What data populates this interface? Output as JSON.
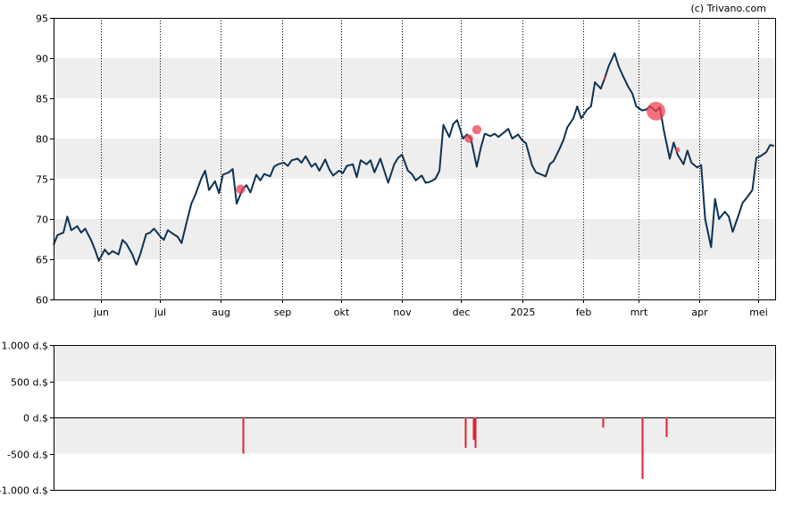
{
  "credit": "(c) Trivano.com",
  "colors": {
    "price_line": "#0d3354",
    "band": "#eeeeee",
    "marker": "#f04050",
    "bar": "#dd2233",
    "axis": "#000000"
  },
  "chart_data": [
    {
      "type": "line",
      "grid": "dotted vertical lines at month boundaries; alternating grey horizontal bands",
      "ylim": [
        60,
        95
      ],
      "y_ticks": [
        "60",
        "65",
        "70",
        "75",
        "80",
        "85",
        "90",
        "95"
      ],
      "y_tick_values": [
        60,
        65,
        70,
        75,
        80,
        85,
        90,
        95
      ],
      "bands": [
        [
          65,
          70
        ],
        [
          75,
          80
        ],
        [
          85,
          90
        ]
      ],
      "x_ticks": [
        {
          "label": "jun",
          "date": "2024-06-01"
        },
        {
          "label": "jul",
          "date": "2024-07-01"
        },
        {
          "label": "aug",
          "date": "2024-08-01"
        },
        {
          "label": "sep",
          "date": "2024-09-01"
        },
        {
          "label": "okt",
          "date": "2024-10-01"
        },
        {
          "label": "nov",
          "date": "2024-11-01"
        },
        {
          "label": "dec",
          "date": "2024-12-01"
        },
        {
          "label": "2025",
          "date": "2025-01-01"
        },
        {
          "label": "feb",
          "date": "2025-02-01"
        },
        {
          "label": "mrt",
          "date": "2025-03-01"
        },
        {
          "label": "apr",
          "date": "2025-04-01"
        },
        {
          "label": "mei",
          "date": "2025-05-01"
        }
      ],
      "xlim": [
        "2024-05-08",
        "2025-05-10"
      ],
      "series": [
        {
          "points": [
            [
              "2024-05-08",
              66.8
            ],
            [
              "2024-05-10",
              68.0
            ],
            [
              "2024-05-13",
              68.3
            ],
            [
              "2024-05-15",
              70.3
            ],
            [
              "2024-05-17",
              68.6
            ],
            [
              "2024-05-20",
              69.1
            ],
            [
              "2024-05-22",
              68.3
            ],
            [
              "2024-05-24",
              68.8
            ],
            [
              "2024-05-27",
              67.4
            ],
            [
              "2024-05-29",
              66.2
            ],
            [
              "2024-05-31",
              64.8
            ],
            [
              "2024-06-03",
              66.2
            ],
            [
              "2024-06-05",
              65.6
            ],
            [
              "2024-06-07",
              66.0
            ],
            [
              "2024-06-10",
              65.6
            ],
            [
              "2024-06-12",
              67.4
            ],
            [
              "2024-06-14",
              66.9
            ],
            [
              "2024-06-17",
              65.6
            ],
            [
              "2024-06-19",
              64.3
            ],
            [
              "2024-06-21",
              65.6
            ],
            [
              "2024-06-24",
              68.1
            ],
            [
              "2024-06-26",
              68.3
            ],
            [
              "2024-06-28",
              68.8
            ],
            [
              "2024-07-01",
              67.9
            ],
            [
              "2024-07-03",
              67.4
            ],
            [
              "2024-07-05",
              68.6
            ],
            [
              "2024-07-08",
              68.1
            ],
            [
              "2024-07-10",
              67.8
            ],
            [
              "2024-07-12",
              67.0
            ],
            [
              "2024-07-15",
              70.0
            ],
            [
              "2024-07-17",
              71.9
            ],
            [
              "2024-07-19",
              73.0
            ],
            [
              "2024-07-22",
              75.0
            ],
            [
              "2024-07-24",
              76.0
            ],
            [
              "2024-07-26",
              73.6
            ],
            [
              "2024-07-29",
              74.7
            ],
            [
              "2024-07-31",
              73.2
            ],
            [
              "2024-08-02",
              75.5
            ],
            [
              "2024-08-05",
              75.8
            ],
            [
              "2024-08-07",
              76.2
            ],
            [
              "2024-08-09",
              71.9
            ],
            [
              "2024-08-12",
              73.7
            ],
            [
              "2024-08-14",
              74.2
            ],
            [
              "2024-08-16",
              73.3
            ],
            [
              "2024-08-19",
              75.5
            ],
            [
              "2024-08-21",
              74.8
            ],
            [
              "2024-08-23",
              75.6
            ],
            [
              "2024-08-26",
              75.3
            ],
            [
              "2024-08-28",
              76.5
            ],
            [
              "2024-08-30",
              76.8
            ],
            [
              "2024-09-02",
              77.0
            ],
            [
              "2024-09-04",
              76.6
            ],
            [
              "2024-09-06",
              77.3
            ],
            [
              "2024-09-09",
              77.5
            ],
            [
              "2024-09-11",
              77.0
            ],
            [
              "2024-09-13",
              77.8
            ],
            [
              "2024-09-16",
              76.5
            ],
            [
              "2024-09-18",
              76.9
            ],
            [
              "2024-09-20",
              76.0
            ],
            [
              "2024-09-23",
              77.4
            ],
            [
              "2024-09-25",
              76.2
            ],
            [
              "2024-09-27",
              75.4
            ],
            [
              "2024-09-30",
              76.0
            ],
            [
              "2024-10-02",
              75.7
            ],
            [
              "2024-10-04",
              76.6
            ],
            [
              "2024-10-07",
              76.8
            ],
            [
              "2024-10-09",
              75.2
            ],
            [
              "2024-10-11",
              77.3
            ],
            [
              "2024-10-14",
              76.8
            ],
            [
              "2024-10-16",
              77.3
            ],
            [
              "2024-10-18",
              75.8
            ],
            [
              "2024-10-21",
              77.5
            ],
            [
              "2024-10-23",
              76.0
            ],
            [
              "2024-10-25",
              74.5
            ],
            [
              "2024-10-28",
              76.8
            ],
            [
              "2024-10-30",
              77.6
            ],
            [
              "2024-11-01",
              78.0
            ],
            [
              "2024-11-04",
              76.0
            ],
            [
              "2024-11-06",
              75.6
            ],
            [
              "2024-11-08",
              74.8
            ],
            [
              "2024-11-11",
              75.4
            ],
            [
              "2024-11-13",
              74.5
            ],
            [
              "2024-11-15",
              74.6
            ],
            [
              "2024-11-18",
              75.0
            ],
            [
              "2024-11-20",
              76.0
            ],
            [
              "2024-11-22",
              81.7
            ],
            [
              "2024-11-25",
              80.2
            ],
            [
              "2024-11-27",
              81.8
            ],
            [
              "2024-11-29",
              82.3
            ],
            [
              "2024-12-02",
              80.0
            ],
            [
              "2024-12-04",
              80.5
            ],
            [
              "2024-12-06",
              80.0
            ],
            [
              "2024-12-09",
              76.5
            ],
            [
              "2024-12-11",
              78.8
            ],
            [
              "2024-12-13",
              80.6
            ],
            [
              "2024-12-16",
              80.3
            ],
            [
              "2024-12-18",
              80.6
            ],
            [
              "2024-12-20",
              80.2
            ],
            [
              "2024-12-23",
              80.8
            ],
            [
              "2024-12-25",
              81.2
            ],
            [
              "2024-12-27",
              80.0
            ],
            [
              "2024-12-30",
              80.5
            ],
            [
              "2025-01-01",
              79.8
            ],
            [
              "2025-01-03",
              79.4
            ],
            [
              "2025-01-06",
              76.7
            ],
            [
              "2025-01-08",
              75.8
            ],
            [
              "2025-01-10",
              75.6
            ],
            [
              "2025-01-13",
              75.3
            ],
            [
              "2025-01-15",
              76.8
            ],
            [
              "2025-01-17",
              77.2
            ],
            [
              "2025-01-20",
              78.7
            ],
            [
              "2025-01-22",
              79.8
            ],
            [
              "2025-01-24",
              81.4
            ],
            [
              "2025-01-27",
              82.5
            ],
            [
              "2025-01-29",
              84.0
            ],
            [
              "2025-01-31",
              82.5
            ],
            [
              "2025-02-03",
              83.6
            ],
            [
              "2025-02-05",
              84.0
            ],
            [
              "2025-02-07",
              87.0
            ],
            [
              "2025-02-10",
              86.2
            ],
            [
              "2025-02-12",
              87.5
            ],
            [
              "2025-02-14",
              89.0
            ],
            [
              "2025-02-17",
              90.6
            ],
            [
              "2025-02-19",
              89.0
            ],
            [
              "2025-02-21",
              87.9
            ],
            [
              "2025-02-24",
              86.4
            ],
            [
              "2025-02-26",
              85.6
            ],
            [
              "2025-02-28",
              84.0
            ],
            [
              "2025-03-03",
              83.5
            ],
            [
              "2025-03-05",
              83.6
            ],
            [
              "2025-03-07",
              84.0
            ],
            [
              "2025-03-10",
              83.4
            ],
            [
              "2025-03-12",
              83.9
            ],
            [
              "2025-03-14",
              81.0
            ],
            [
              "2025-03-17",
              77.5
            ],
            [
              "2025-03-19",
              79.5
            ],
            [
              "2025-03-21",
              78.0
            ],
            [
              "2025-03-24",
              76.8
            ],
            [
              "2025-03-26",
              78.5
            ],
            [
              "2025-03-28",
              77.0
            ],
            [
              "2025-03-31",
              76.4
            ],
            [
              "2025-04-02",
              76.7
            ],
            [
              "2025-04-04",
              70.0
            ],
            [
              "2025-04-07",
              66.5
            ],
            [
              "2025-04-09",
              72.5
            ],
            [
              "2025-04-11",
              70.0
            ],
            [
              "2025-04-14",
              70.9
            ],
            [
              "2025-04-16",
              70.3
            ],
            [
              "2025-04-18",
              68.4
            ],
            [
              "2025-04-21",
              70.5
            ],
            [
              "2025-04-23",
              72.0
            ],
            [
              "2025-04-25",
              72.6
            ],
            [
              "2025-04-28",
              73.6
            ],
            [
              "2025-04-30",
              77.6
            ],
            [
              "2025-05-02",
              77.8
            ],
            [
              "2025-05-05",
              78.3
            ],
            [
              "2025-05-07",
              79.2
            ],
            [
              "2025-05-09",
              79.1
            ]
          ]
        }
      ],
      "markers": [
        {
          "date": "2024-08-11",
          "y": 73.7,
          "size": 1.3
        },
        {
          "date": "2024-12-05",
          "y": 80.0,
          "size": 1.2
        },
        {
          "date": "2024-12-09",
          "y": 81.1,
          "size": 1.3
        },
        {
          "date": "2025-02-12",
          "y": 87.5,
          "size": 0.4
        },
        {
          "date": "2025-03-10",
          "y": 83.4,
          "size": 2.6
        },
        {
          "date": "2025-03-21",
          "y": 78.6,
          "size": 0.7
        }
      ]
    },
    {
      "type": "bar",
      "grid": "alternating grey horizontal bands; line at zero",
      "ylim": [
        -1000,
        1000
      ],
      "y_ticks": [
        "1.000 d.$",
        "500 d.$",
        "0 d.$",
        "-500 d.$",
        "-1.000 d.$"
      ],
      "y_tick_values": [
        1000,
        500,
        0,
        -500,
        -1000
      ],
      "bands": [
        [
          500,
          1000
        ],
        [
          -500,
          0
        ]
      ],
      "bars": [
        {
          "date": "2024-08-12",
          "value": -500
        },
        {
          "date": "2024-12-03",
          "value": -420
        },
        {
          "date": "2024-12-07",
          "value": -310
        },
        {
          "date": "2024-12-08",
          "value": -420
        },
        {
          "date": "2025-02-11",
          "value": -140
        },
        {
          "date": "2025-03-03",
          "value": -850
        },
        {
          "date": "2025-03-15",
          "value": -270
        }
      ]
    }
  ]
}
